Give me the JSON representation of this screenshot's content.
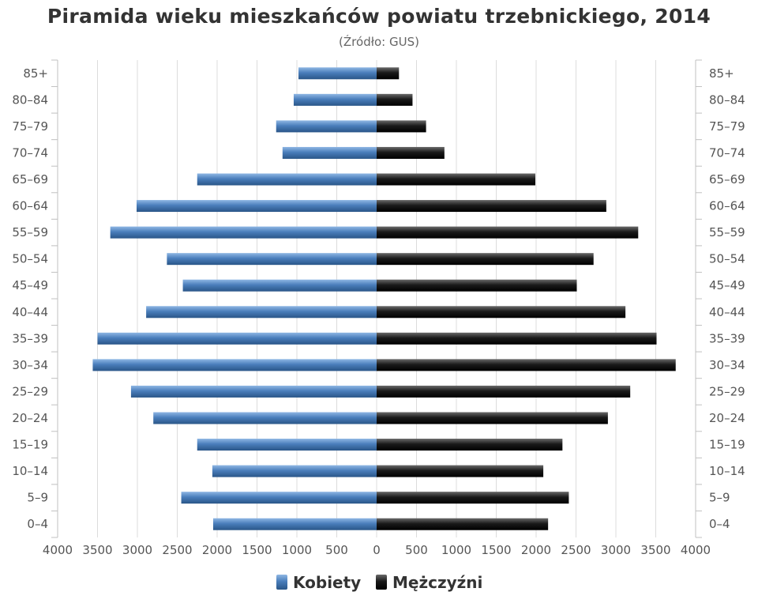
{
  "chart_data": {
    "type": "bar",
    "orientation": "horizontal",
    "layout": "population-pyramid",
    "title": "Piramida wieku mieszkańców powiatu trzebnickiego, 2014",
    "subtitle": "(Źródło: GUS)",
    "categories": [
      "0–4",
      "5–9",
      "10–14",
      "15–19",
      "20–24",
      "25–29",
      "30–34",
      "35–39",
      "40–44",
      "45–49",
      "50–54",
      "55–59",
      "60–64",
      "65–69",
      "70–74",
      "75–79",
      "80–84",
      "85+"
    ],
    "x_ticks": [
      "4000",
      "3500",
      "3000",
      "2500",
      "2000",
      "1500",
      "1000",
      "500",
      "0",
      "500",
      "1000",
      "1500",
      "2000",
      "2500",
      "3000",
      "3500",
      "4000"
    ],
    "xlim": [
      -4000,
      4000
    ],
    "grid": "vertical",
    "legend_position": "bottom",
    "series": [
      {
        "name": "Kobiety",
        "side": "left",
        "color": "#4a7ebb",
        "values": [
          2050,
          2450,
          2060,
          2250,
          2800,
          3080,
          3560,
          3500,
          2890,
          2430,
          2630,
          3340,
          3010,
          2250,
          1180,
          1260,
          1040,
          980
        ]
      },
      {
        "name": "Mężczyźni",
        "side": "right",
        "color": "#1a1a1a",
        "values": [
          2150,
          2410,
          2090,
          2330,
          2900,
          3180,
          3750,
          3510,
          3120,
          2510,
          2720,
          3280,
          2880,
          1990,
          850,
          620,
          450,
          280
        ]
      }
    ]
  }
}
